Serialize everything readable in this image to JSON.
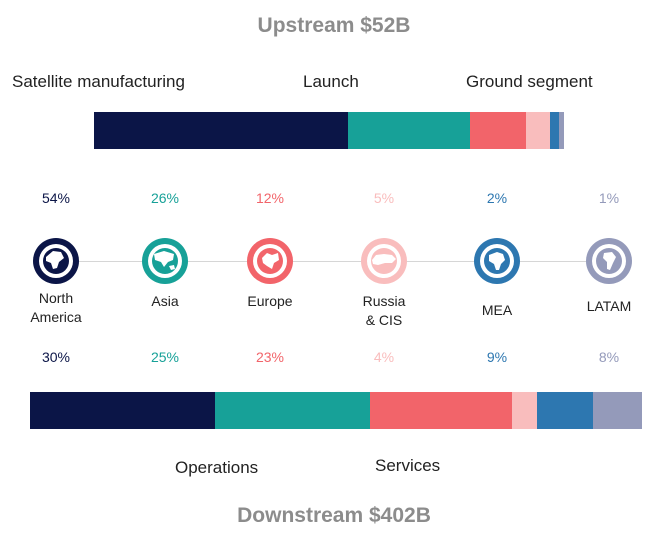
{
  "chart_data": {
    "type": "stacked-bar",
    "upstream": {
      "title": "Upstream $52B",
      "segment_labels": [
        "Satellite manufacturing",
        "Launch",
        "Ground segment"
      ],
      "values": [
        54,
        26,
        12,
        5,
        2,
        1
      ]
    },
    "downstream": {
      "title": "Downstream $402B",
      "segment_labels": [
        "Operations",
        "Services"
      ],
      "values": [
        30,
        25,
        23,
        4,
        9,
        8
      ]
    },
    "regions": [
      {
        "name": "North\nAmerica",
        "up_label": "54%",
        "down_label": "30%",
        "color": "#0b1547",
        "icon": "north-america-globe-icon"
      },
      {
        "name": "Asia",
        "up_label": "26%",
        "down_label": "25%",
        "color": "#17a198",
        "icon": "asia-globe-icon"
      },
      {
        "name": "Europe",
        "up_label": "12%",
        "down_label": "23%",
        "color": "#f2646a",
        "icon": "europe-globe-icon"
      },
      {
        "name": "Russia\n& CIS",
        "up_label": "5%",
        "down_label": "4%",
        "color": "#f9bdbd",
        "icon": "russia-globe-icon"
      },
      {
        "name": "MEA",
        "up_label": "2%",
        "down_label": "9%",
        "color": "#2d77b0",
        "icon": "africa-globe-icon"
      },
      {
        "name": "LATAM",
        "up_label": "1%",
        "down_label": "8%",
        "color": "#949aba",
        "icon": "south-america-globe-icon"
      }
    ]
  }
}
